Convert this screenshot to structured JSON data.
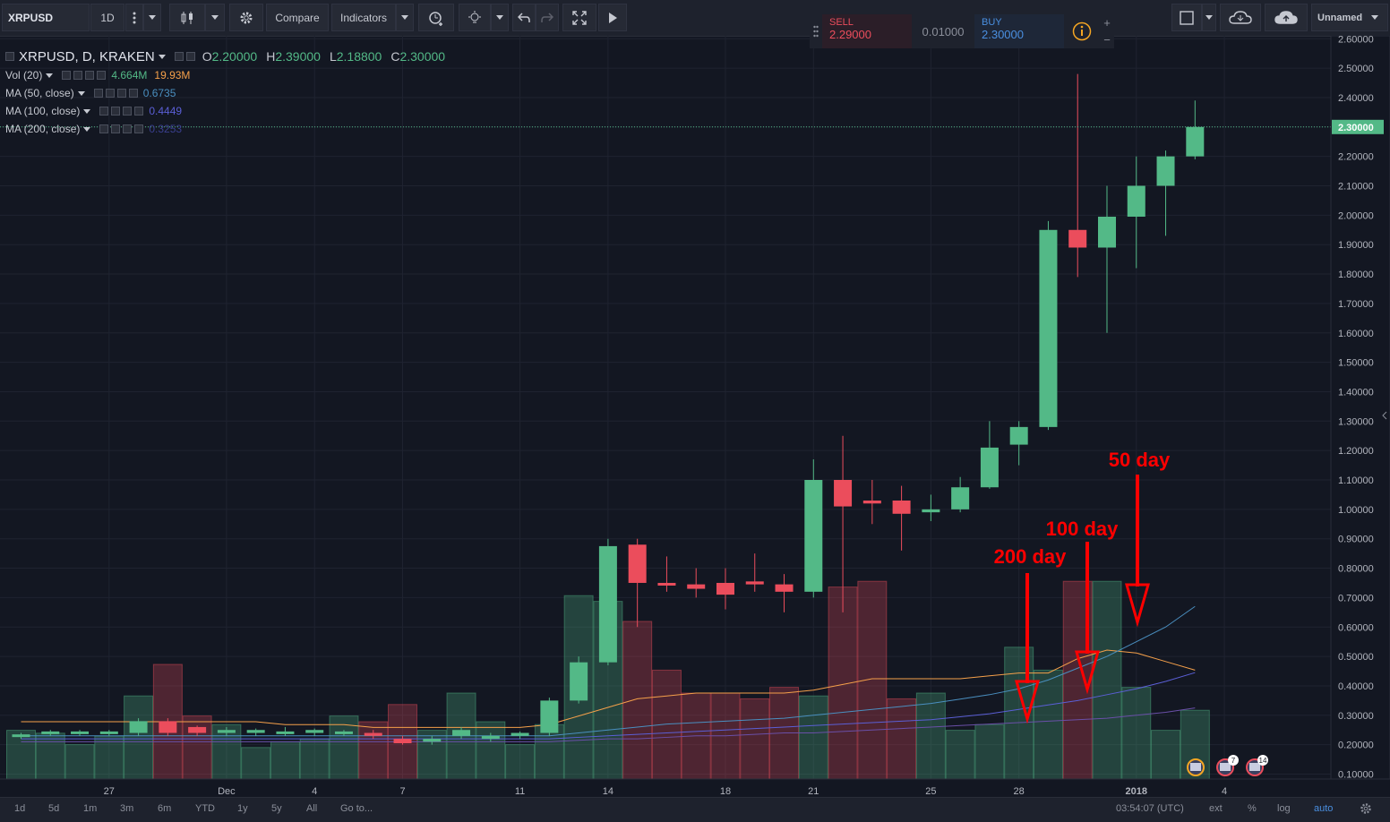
{
  "toolbar": {
    "symbol": "XRPUSD",
    "interval": "1D",
    "compare": "Compare",
    "indicators": "Indicators",
    "layout_name": "Unnamed"
  },
  "trade": {
    "sell_label": "SELL",
    "sell_price": "2.29000",
    "spread": "0.01000",
    "buy_label": "BUY",
    "buy_price": "2.30000",
    "plus": "+",
    "minus": "−"
  },
  "legend": {
    "title": "XRPUSD, D, KRAKEN",
    "ohlc": {
      "o_label": "O",
      "o": "2.20000",
      "h_label": "H",
      "h": "2.39000",
      "l_label": "L",
      "l": "2.18800",
      "c_label": "C",
      "c": "2.30000"
    },
    "vol": {
      "label": "Vol (20)",
      "v1": "4.664M",
      "v2": "19.93M"
    },
    "ma50": {
      "label": "MA (50, close)",
      "value": "0.6735"
    },
    "ma100": {
      "label": "MA (100, close)",
      "value": "0.4449"
    },
    "ma200": {
      "label": "MA (200, close)",
      "value": "0.3253"
    }
  },
  "price_axis": [
    "2.60000",
    "2.50000",
    "2.40000",
    "2.30000",
    "2.20000",
    "2.10000",
    "2.00000",
    "1.90000",
    "1.80000",
    "1.70000",
    "1.60000",
    "1.50000",
    "1.40000",
    "1.30000",
    "1.20000",
    "1.10000",
    "1.00000",
    "0.90000",
    "0.80000",
    "0.70000",
    "0.60000",
    "0.50000",
    "0.40000",
    "0.30000",
    "0.20000",
    "0.10000"
  ],
  "last_price": "2.30000",
  "time_axis": [
    "27",
    "Dec",
    "4",
    "7",
    "11",
    "14",
    "18",
    "21",
    "25",
    "28",
    "2018",
    "4"
  ],
  "annotations": {
    "a50": "50 day",
    "a100": "100 day",
    "a200": "200 day"
  },
  "range_buttons": [
    "1d",
    "5d",
    "1m",
    "3m",
    "6m",
    "YTD",
    "1y",
    "5y",
    "All"
  ],
  "goto": "Go to...",
  "clock": "03:54:07 (UTC)",
  "scale_opts": {
    "ext": "ext",
    "pct": "%",
    "log": "log",
    "auto": "auto"
  },
  "badges": {
    "b1": "7",
    "b2": "14"
  },
  "colors": {
    "up": "#53b987",
    "down": "#eb4d5c",
    "bg": "#131722",
    "annot": "#ff0000",
    "ma50": "#4a8fc0",
    "ma100": "#5b5fd6",
    "ma200": "#6a4fa8",
    "vol_ma": "#f5a04a"
  },
  "chart_data": {
    "type": "candlestick",
    "x": [
      "Nov 24",
      "Nov 25",
      "Nov 26",
      "Nov 27",
      "Nov 28",
      "Nov 29",
      "Nov 30",
      "Dec 1",
      "Dec 2",
      "Dec 3",
      "Dec 4",
      "Dec 5",
      "Dec 6",
      "Dec 7",
      "Dec 8",
      "Dec 9",
      "Dec 10",
      "Dec 11",
      "Dec 12",
      "Dec 13",
      "Dec 14",
      "Dec 15",
      "Dec 16",
      "Dec 17",
      "Dec 18",
      "Dec 19",
      "Dec 20",
      "Dec 21",
      "Dec 22",
      "Dec 23",
      "Dec 24",
      "Dec 25",
      "Dec 26",
      "Dec 27",
      "Dec 28",
      "Dec 29",
      "Dec 30",
      "Dec 31",
      "Jan 1",
      "Jan 2",
      "Jan 3"
    ],
    "open": [
      0.23,
      0.24,
      0.24,
      0.24,
      0.24,
      0.28,
      0.26,
      0.24,
      0.24,
      0.24,
      0.24,
      0.24,
      0.24,
      0.22,
      0.21,
      0.23,
      0.22,
      0.23,
      0.24,
      0.35,
      0.48,
      0.88,
      0.75,
      0.745,
      0.75,
      0.755,
      0.745,
      0.72,
      1.1,
      1.03,
      1.03,
      0.99,
      1.0,
      1.075,
      1.22,
      1.28,
      1.95,
      1.89,
      1.995,
      2.1,
      2.2
    ],
    "close": [
      0.235,
      0.245,
      0.245,
      0.245,
      0.28,
      0.24,
      0.24,
      0.25,
      0.25,
      0.245,
      0.25,
      0.245,
      0.23,
      0.205,
      0.22,
      0.25,
      0.23,
      0.24,
      0.35,
      0.48,
      0.875,
      0.75,
      0.745,
      0.73,
      0.71,
      0.745,
      0.72,
      1.1,
      1.01,
      1.02,
      0.985,
      1.0,
      1.075,
      1.21,
      1.28,
      1.95,
      1.89,
      1.995,
      2.1,
      2.2,
      2.3
    ],
    "high": [
      0.24,
      0.25,
      0.25,
      0.25,
      0.29,
      0.29,
      0.265,
      0.26,
      0.255,
      0.26,
      0.255,
      0.25,
      0.25,
      0.23,
      0.23,
      0.26,
      0.24,
      0.245,
      0.36,
      0.5,
      0.9,
      0.9,
      0.84,
      0.8,
      0.8,
      0.85,
      0.78,
      1.17,
      1.25,
      1.1,
      1.08,
      1.05,
      1.11,
      1.3,
      1.3,
      1.98,
      2.48,
      2.1,
      2.2,
      2.22,
      2.39
    ],
    "low": [
      0.22,
      0.23,
      0.23,
      0.23,
      0.23,
      0.23,
      0.23,
      0.23,
      0.23,
      0.23,
      0.23,
      0.23,
      0.22,
      0.2,
      0.2,
      0.22,
      0.21,
      0.22,
      0.23,
      0.34,
      0.47,
      0.6,
      0.72,
      0.7,
      0.66,
      0.72,
      0.65,
      0.7,
      0.65,
      0.95,
      0.86,
      0.96,
      0.99,
      1.07,
      1.15,
      1.27,
      1.79,
      1.6,
      1.82,
      1.93,
      2.19
    ],
    "volume_relative": [
      0.17,
      0.16,
      0.12,
      0.15,
      0.29,
      0.4,
      0.22,
      0.19,
      0.11,
      0.13,
      0.14,
      0.22,
      0.2,
      0.26,
      0.17,
      0.3,
      0.2,
      0.12,
      0.19,
      0.64,
      0.62,
      0.55,
      0.38,
      0.3,
      0.3,
      0.28,
      0.32,
      0.29,
      0.67,
      0.69,
      0.28,
      0.3,
      0.17,
      0.19,
      0.46,
      0.38,
      0.69,
      0.69,
      0.32,
      0.17,
      0.24
    ],
    "ma50": [
      0.23,
      0.23,
      0.23,
      0.23,
      0.23,
      0.23,
      0.23,
      0.23,
      0.23,
      0.23,
      0.23,
      0.23,
      0.23,
      0.23,
      0.23,
      0.23,
      0.23,
      0.23,
      0.23,
      0.24,
      0.25,
      0.26,
      0.27,
      0.275,
      0.28,
      0.285,
      0.29,
      0.3,
      0.31,
      0.32,
      0.33,
      0.34,
      0.355,
      0.37,
      0.39,
      0.42,
      0.46,
      0.5,
      0.55,
      0.6,
      0.67
    ],
    "ma100": [
      0.22,
      0.22,
      0.22,
      0.22,
      0.22,
      0.22,
      0.22,
      0.22,
      0.22,
      0.22,
      0.22,
      0.22,
      0.22,
      0.22,
      0.22,
      0.22,
      0.22,
      0.22,
      0.22,
      0.225,
      0.23,
      0.235,
      0.24,
      0.245,
      0.25,
      0.255,
      0.26,
      0.265,
      0.27,
      0.275,
      0.28,
      0.285,
      0.295,
      0.305,
      0.32,
      0.335,
      0.35,
      0.37,
      0.39,
      0.415,
      0.445
    ],
    "ma200": [
      0.21,
      0.21,
      0.21,
      0.21,
      0.21,
      0.21,
      0.21,
      0.21,
      0.21,
      0.21,
      0.21,
      0.21,
      0.21,
      0.21,
      0.21,
      0.21,
      0.21,
      0.21,
      0.21,
      0.215,
      0.22,
      0.22,
      0.225,
      0.23,
      0.23,
      0.235,
      0.24,
      0.24,
      0.245,
      0.25,
      0.255,
      0.26,
      0.265,
      0.27,
      0.275,
      0.28,
      0.285,
      0.29,
      0.3,
      0.31,
      0.325
    ],
    "vol_ma_relative": [
      0.2,
      0.2,
      0.2,
      0.2,
      0.2,
      0.2,
      0.2,
      0.2,
      0.2,
      0.19,
      0.19,
      0.19,
      0.18,
      0.18,
      0.18,
      0.18,
      0.18,
      0.18,
      0.19,
      0.22,
      0.25,
      0.28,
      0.29,
      0.3,
      0.3,
      0.3,
      0.3,
      0.31,
      0.33,
      0.35,
      0.35,
      0.35,
      0.35,
      0.36,
      0.37,
      0.37,
      0.42,
      0.45,
      0.44,
      0.41,
      0.38
    ],
    "ylim": [
      0.05,
      2.62
    ]
  }
}
